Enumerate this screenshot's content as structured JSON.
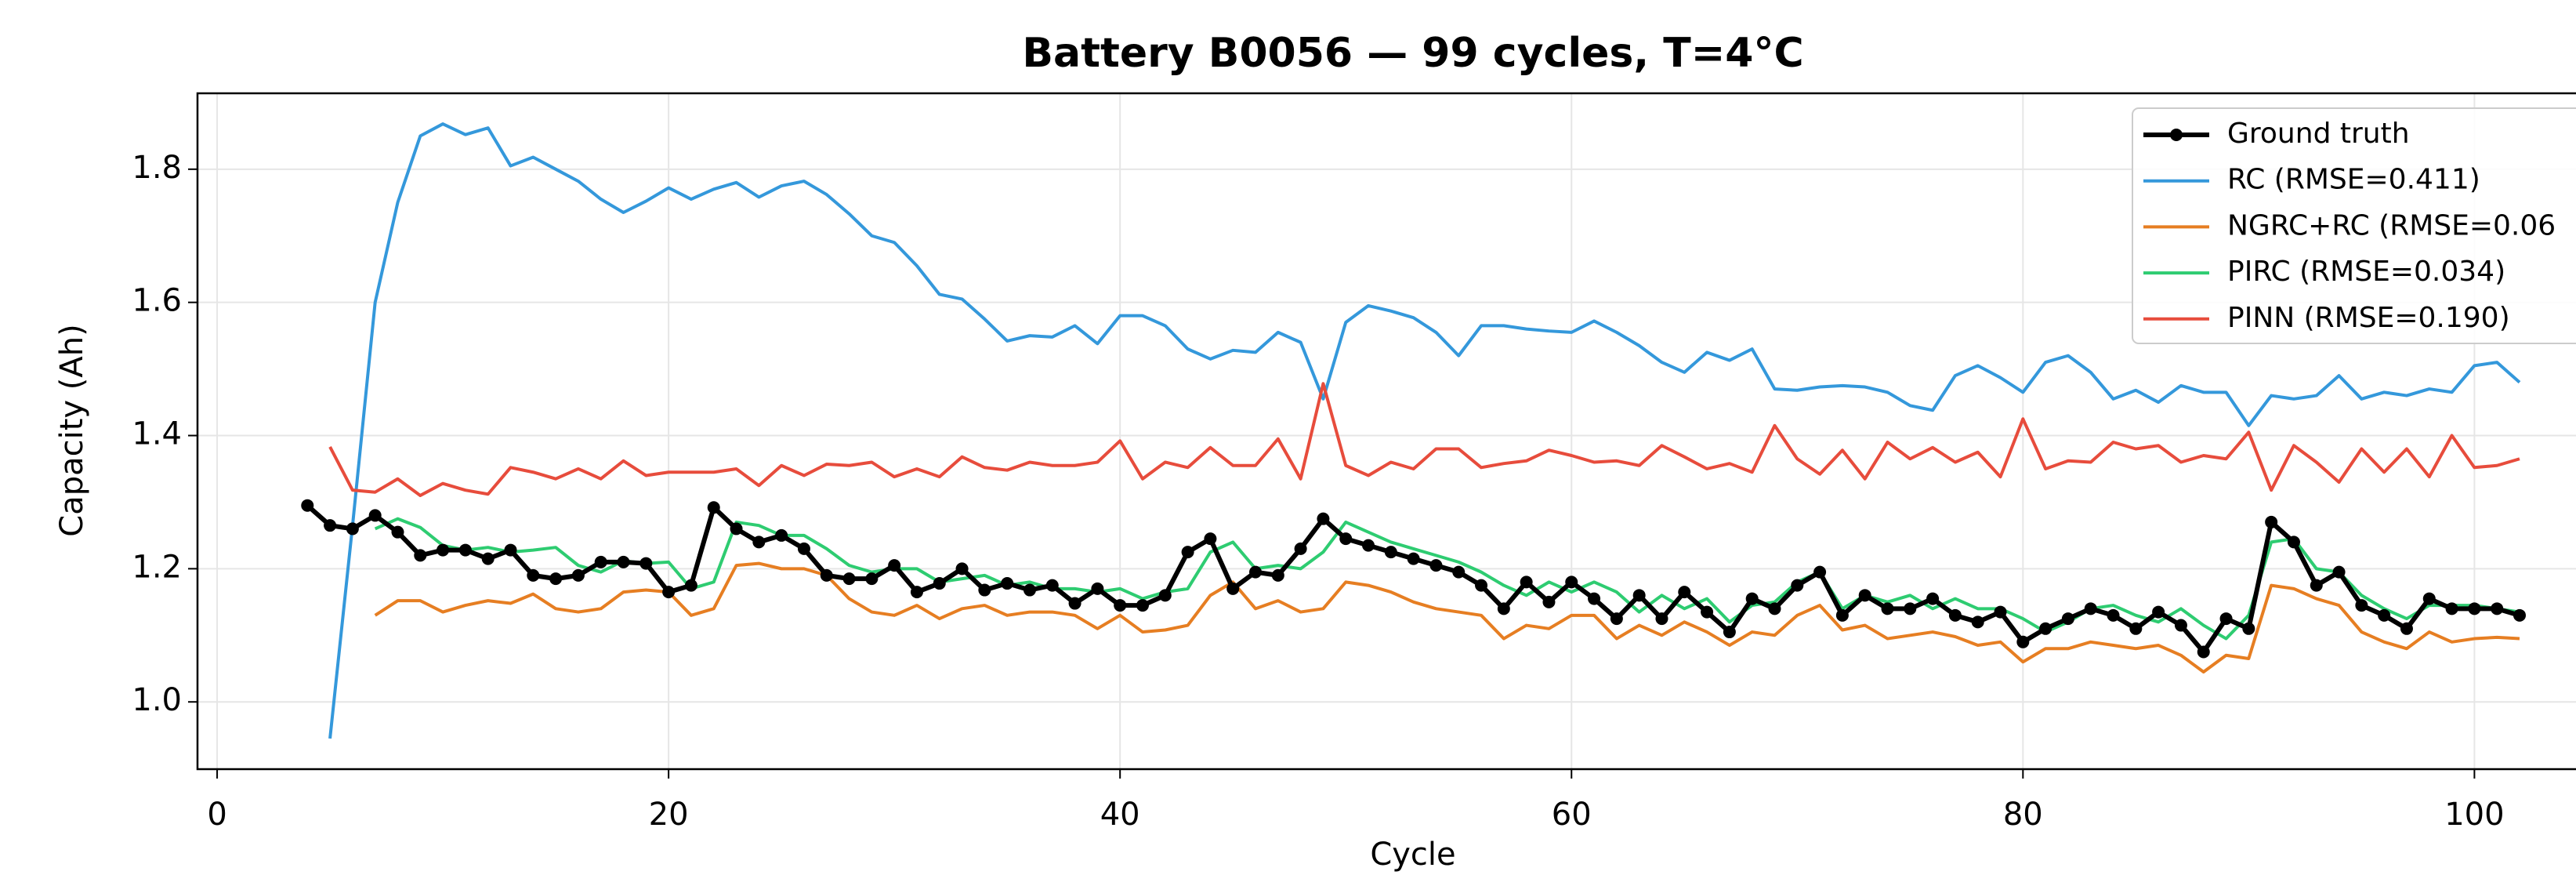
{
  "chart_data": {
    "type": "line",
    "title": "Battery B0056 — 99 cycles, T=4°C",
    "xlabel": "Cycle",
    "ylabel": "Capacity (Ah)",
    "x": [
      4,
      5,
      6,
      7,
      8,
      9,
      10,
      11,
      12,
      13,
      14,
      15,
      16,
      17,
      18,
      19,
      20,
      21,
      22,
      23,
      24,
      25,
      26,
      27,
      28,
      29,
      30,
      31,
      32,
      33,
      34,
      35,
      36,
      37,
      38,
      39,
      40,
      41,
      42,
      43,
      44,
      45,
      46,
      47,
      48,
      49,
      50,
      51,
      52,
      53,
      54,
      55,
      56,
      57,
      58,
      59,
      60,
      61,
      62,
      63,
      64,
      65,
      66,
      67,
      68,
      69,
      70,
      71,
      72,
      73,
      74,
      75,
      76,
      77,
      78,
      79,
      80,
      81,
      82,
      83,
      84,
      85,
      86,
      87,
      88,
      89,
      90,
      91,
      92,
      93,
      94,
      95,
      96,
      97,
      98,
      99,
      100,
      101,
      102
    ],
    "xlim": [
      -0.87,
      104.5
    ],
    "xticks": [
      0,
      20,
      40,
      60,
      80,
      100
    ],
    "ylim": [
      0.899,
      1.914
    ],
    "yticks": [
      {
        "value": 1.0,
        "label": "1.0"
      },
      1.2,
      1.4,
      1.6,
      1.8
    ],
    "grid": true,
    "legend": "upper right",
    "series": [
      {
        "name": "Ground truth",
        "color": "#000000",
        "markers": true,
        "values": [
          1.295,
          1.265,
          1.26,
          1.28,
          1.255,
          1.22,
          1.228,
          1.228,
          1.215,
          1.228,
          1.19,
          1.185,
          1.19,
          1.21,
          1.21,
          1.208,
          1.165,
          1.175,
          1.292,
          1.26,
          1.24,
          1.25,
          1.23,
          1.19,
          1.185,
          1.185,
          1.205,
          1.165,
          1.178,
          1.2,
          1.168,
          1.178,
          1.168,
          1.175,
          1.148,
          1.17,
          1.145,
          1.145,
          1.16,
          1.225,
          1.245,
          1.17,
          1.195,
          1.19,
          1.23,
          1.275,
          1.245,
          1.235,
          1.225,
          1.215,
          1.205,
          1.195,
          1.175,
          1.14,
          1.18,
          1.15,
          1.18,
          1.155,
          1.125,
          1.16,
          1.125,
          1.165,
          1.135,
          1.105,
          1.155,
          1.14,
          1.175,
          1.195,
          1.13,
          1.16,
          1.14,
          1.14,
          1.155,
          1.13,
          1.12,
          1.135,
          1.09,
          1.11,
          1.125,
          1.14,
          1.13,
          1.11,
          1.135,
          1.115,
          1.075,
          1.125,
          1.11,
          1.27,
          1.24,
          1.175,
          1.195,
          1.145,
          1.13,
          1.11,
          1.155,
          1.14,
          1.14,
          1.14,
          1.13
        ]
      },
      {
        "name": "RC (RMSE=0.411)",
        "color": "#3498db",
        "values": [
          null,
          0.945,
          1.265,
          1.6,
          1.75,
          1.85,
          1.868,
          1.852,
          1.862,
          1.805,
          1.818,
          1.8,
          1.782,
          1.755,
          1.735,
          1.752,
          1.772,
          1.755,
          1.77,
          1.78,
          1.758,
          1.775,
          1.782,
          1.762,
          1.733,
          1.7,
          1.69,
          1.655,
          1.612,
          1.605,
          1.575,
          1.542,
          1.55,
          1.548,
          1.565,
          1.538,
          1.58,
          1.58,
          1.565,
          1.53,
          1.515,
          1.528,
          1.525,
          1.555,
          1.54,
          1.455,
          1.57,
          1.595,
          1.587,
          1.577,
          1.555,
          1.52,
          1.565,
          1.565,
          1.56,
          1.557,
          1.555,
          1.572,
          1.555,
          1.535,
          1.51,
          1.495,
          1.525,
          1.513,
          1.53,
          1.47,
          1.468,
          1.473,
          1.475,
          1.473,
          1.465,
          1.445,
          1.438,
          1.49,
          1.505,
          1.487,
          1.465,
          1.51,
          1.52,
          1.495,
          1.455,
          1.468,
          1.45,
          1.475,
          1.465,
          1.465,
          1.415,
          1.46,
          1.455,
          1.46,
          1.49,
          1.455,
          1.465,
          1.46,
          1.47,
          1.465,
          1.505,
          1.51,
          1.48
        ]
      },
      {
        "name": "NGRC+RC (RMSE=0.06",
        "color": "#e67e22",
        "values": [
          null,
          null,
          null,
          1.13,
          1.152,
          1.152,
          1.135,
          1.145,
          1.152,
          1.148,
          1.162,
          1.14,
          1.135,
          1.14,
          1.165,
          1.168,
          1.165,
          1.13,
          1.14,
          1.205,
          1.208,
          1.2,
          1.2,
          1.19,
          1.155,
          1.135,
          1.13,
          1.145,
          1.125,
          1.14,
          1.145,
          1.13,
          1.135,
          1.135,
          1.13,
          1.11,
          1.13,
          1.105,
          1.108,
          1.115,
          1.16,
          1.18,
          1.14,
          1.152,
          1.135,
          1.14,
          1.18,
          1.175,
          1.165,
          1.15,
          1.14,
          1.135,
          1.13,
          1.095,
          1.115,
          1.11,
          1.13,
          1.13,
          1.095,
          1.115,
          1.1,
          1.12,
          1.105,
          1.085,
          1.105,
          1.1,
          1.13,
          1.145,
          1.108,
          1.115,
          1.095,
          1.1,
          1.105,
          1.098,
          1.085,
          1.09,
          1.06,
          1.08,
          1.08,
          1.09,
          1.085,
          1.08,
          1.085,
          1.07,
          1.045,
          1.07,
          1.065,
          1.175,
          1.17,
          1.155,
          1.145,
          1.105,
          1.09,
          1.08,
          1.105,
          1.09,
          1.095,
          1.097,
          1.095
        ]
      },
      {
        "name": "PIRC (RMSE=0.034)",
        "color": "#2ecc71",
        "values": [
          null,
          null,
          null,
          1.26,
          1.275,
          1.262,
          1.235,
          1.228,
          1.232,
          1.225,
          1.228,
          1.232,
          1.205,
          1.195,
          1.212,
          1.208,
          1.21,
          1.17,
          1.18,
          1.27,
          1.265,
          1.25,
          1.25,
          1.23,
          1.205,
          1.195,
          1.2,
          1.2,
          1.18,
          1.185,
          1.19,
          1.175,
          1.18,
          1.17,
          1.17,
          1.165,
          1.17,
          1.155,
          1.165,
          1.17,
          1.225,
          1.24,
          1.2,
          1.205,
          1.2,
          1.225,
          1.27,
          1.255,
          1.24,
          1.23,
          1.22,
          1.21,
          1.195,
          1.175,
          1.16,
          1.18,
          1.165,
          1.18,
          1.165,
          1.135,
          1.16,
          1.14,
          1.155,
          1.12,
          1.145,
          1.15,
          1.18,
          1.195,
          1.14,
          1.16,
          1.15,
          1.16,
          1.14,
          1.155,
          1.14,
          1.14,
          1.125,
          1.105,
          1.12,
          1.14,
          1.145,
          1.13,
          1.12,
          1.14,
          1.115,
          1.095,
          1.13,
          1.24,
          1.245,
          1.2,
          1.195,
          1.16,
          1.14,
          1.125,
          1.145,
          1.145,
          1.145,
          1.14,
          1.135
        ]
      },
      {
        "name": "PINN (RMSE=0.190)",
        "color": "#e74c3c",
        "values": [
          null,
          1.383,
          1.318,
          1.315,
          1.335,
          1.31,
          1.328,
          1.318,
          1.312,
          1.352,
          1.345,
          1.335,
          1.35,
          1.335,
          1.362,
          1.34,
          1.345,
          1.345,
          1.345,
          1.35,
          1.325,
          1.355,
          1.34,
          1.357,
          1.355,
          1.36,
          1.338,
          1.35,
          1.338,
          1.368,
          1.352,
          1.348,
          1.36,
          1.355,
          1.355,
          1.36,
          1.392,
          1.335,
          1.36,
          1.352,
          1.382,
          1.355,
          1.355,
          1.395,
          1.335,
          1.478,
          1.355,
          1.34,
          1.36,
          1.35,
          1.38,
          1.38,
          1.352,
          1.358,
          1.362,
          1.378,
          1.37,
          1.36,
          1.362,
          1.355,
          1.385,
          1.368,
          1.35,
          1.358,
          1.345,
          1.415,
          1.365,
          1.342,
          1.378,
          1.335,
          1.39,
          1.365,
          1.382,
          1.36,
          1.375,
          1.338,
          1.425,
          1.35,
          1.362,
          1.36,
          1.39,
          1.38,
          1.385,
          1.36,
          1.37,
          1.365,
          1.405,
          1.318,
          1.385,
          1.36,
          1.33,
          1.38,
          1.345,
          1.38,
          1.338,
          1.4,
          1.352,
          1.355,
          1.365
        ]
      }
    ]
  }
}
